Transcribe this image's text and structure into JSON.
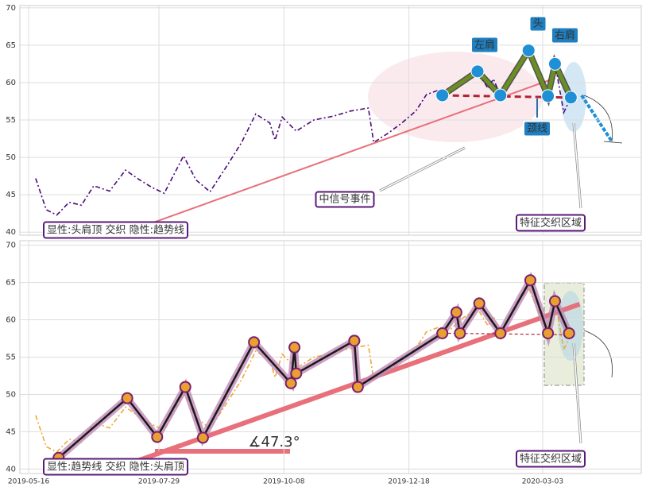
{
  "chart_data": [
    {
      "type": "line",
      "ylim": [
        39.6,
        70.3
      ],
      "yticks": [
        40,
        45,
        50,
        55,
        60,
        65,
        70
      ],
      "grid": true,
      "series": [
        {
          "name": "price",
          "color": "#4b0a7a",
          "dash": "6 3 2 3",
          "x": [
            "2019-05-20",
            "2019-05-26",
            "2019-06-01",
            "2019-06-08",
            "2019-06-15",
            "2019-06-22",
            "2019-07-01",
            "2019-07-10",
            "2019-07-18",
            "2019-07-25",
            "2019-08-01",
            "2019-08-12",
            "2019-08-19",
            "2019-08-27",
            "2019-09-06",
            "2019-09-14",
            "2019-09-22",
            "2019-09-30",
            "2019-10-03",
            "2019-10-07",
            "2019-10-15",
            "2019-10-25",
            "2019-11-05",
            "2019-11-15",
            "2019-11-25",
            "2019-11-28",
            "2019-12-06",
            "2019-12-14",
            "2019-12-22",
            "2019-12-28",
            "2020-01-04",
            "2020-01-10",
            "2020-01-18",
            "2020-01-26",
            "2020-02-01",
            "2020-02-04",
            "2020-02-08",
            "2020-02-17",
            "2020-02-24",
            "2020-03-06",
            "2020-03-10",
            "2020-03-15",
            "2020-03-19"
          ],
          "values": [
            47.2,
            43.0,
            42.3,
            44.0,
            43.6,
            46.2,
            45.5,
            48.3,
            47.0,
            46.0,
            45.2,
            50.2,
            47.0,
            45.4,
            49.0,
            52.0,
            55.8,
            54.6,
            52.3,
            55.4,
            53.5,
            55.0,
            55.5,
            56.2,
            56.6,
            52.0,
            53.2,
            54.6,
            56.2,
            58.4,
            59.0,
            58.6,
            60.3,
            61.5,
            59.2,
            60.5,
            58.3,
            62.0,
            64.3,
            58.1,
            62.6,
            56.0,
            58.0
          ]
        },
        {
          "name": "trend",
          "color": "#e8707a",
          "x": [
            "2019-07-20",
            "2020-03-10"
          ],
          "values": [
            40.8,
            60.6
          ]
        },
        {
          "name": "neckline",
          "color": "#b22234",
          "dash": "8 5",
          "x": [
            "2020-01-06",
            "2020-03-19"
          ],
          "values": [
            58.3,
            58.0
          ]
        },
        {
          "name": "pattern",
          "color": "#6b8e23",
          "marker_color": "#1f8fd6",
          "x": [
            "2020-01-06",
            "2020-01-26",
            "2020-02-08",
            "2020-02-24",
            "2020-03-06",
            "2020-03-10",
            "2020-03-19"
          ],
          "values": [
            58.3,
            61.5,
            58.3,
            64.3,
            58.2,
            62.5,
            58.0
          ]
        }
      ],
      "annotations": [
        "左肩",
        "头",
        "右肩",
        "颈线",
        "中信号事件",
        "特征交织区域",
        "显性:头肩顶 交织 隐性:趋势线"
      ]
    },
    {
      "type": "line",
      "ylim": [
        39.4,
        70.6
      ],
      "yticks": [
        40,
        45,
        50,
        55,
        60,
        65,
        70
      ],
      "grid": true,
      "xlim": [
        "2019-05-11",
        "2020-04-28"
      ],
      "xticks": [
        "2019-05-16",
        "2019-07-29",
        "2019-10-08",
        "2019-12-18",
        "2020-03-03"
      ],
      "series": [
        {
          "name": "price",
          "color": "#f0a838",
          "dash": "6 3 2 3",
          "x": [
            "2019-05-20",
            "2019-05-26",
            "2019-06-01",
            "2019-06-08",
            "2019-06-15",
            "2019-06-22",
            "2019-07-01",
            "2019-07-10",
            "2019-07-18",
            "2019-07-25",
            "2019-08-01",
            "2019-08-12",
            "2019-08-19",
            "2019-08-27",
            "2019-09-06",
            "2019-09-14",
            "2019-09-22",
            "2019-09-30",
            "2019-10-03",
            "2019-10-07",
            "2019-10-15",
            "2019-10-25",
            "2019-11-05",
            "2019-11-15",
            "2019-11-25",
            "2019-11-28",
            "2019-12-06",
            "2019-12-14",
            "2019-12-22",
            "2019-12-28",
            "2020-01-04",
            "2020-01-10",
            "2020-01-18",
            "2020-01-26",
            "2020-02-01",
            "2020-02-04",
            "2020-02-08",
            "2020-02-17",
            "2020-02-24",
            "2020-03-06",
            "2020-03-10",
            "2020-03-15",
            "2020-03-19"
          ],
          "values": [
            47.2,
            43.0,
            42.3,
            44.0,
            43.6,
            46.2,
            45.5,
            48.3,
            47.0,
            46.0,
            45.2,
            50.2,
            47.0,
            45.4,
            49.0,
            52.0,
            55.8,
            54.6,
            52.3,
            55.4,
            53.5,
            55.0,
            55.5,
            56.2,
            56.6,
            52.0,
            53.2,
            54.6,
            56.2,
            58.4,
            59.0,
            58.6,
            60.3,
            61.5,
            59.2,
            60.5,
            58.3,
            62.0,
            64.3,
            58.1,
            62.6,
            56.0,
            58.0
          ]
        },
        {
          "name": "trend",
          "color": "#e8707a",
          "x": [
            "2019-07-06",
            "2020-03-24"
          ],
          "values": [
            40.2,
            62.1
          ]
        },
        {
          "name": "neckline",
          "color": "#b22234",
          "dash": "4 3",
          "x": [
            "2020-01-06",
            "2020-03-19"
          ],
          "values": [
            58.2,
            58.0
          ]
        },
        {
          "name": "pattern",
          "color": "#1a1a1a",
          "marker_color": "#e8a030",
          "x": [
            "2019-06-02",
            "2019-07-11",
            "2019-07-28",
            "2019-08-13",
            "2019-08-23",
            "2019-09-21",
            "2019-10-12",
            "2019-10-14",
            "2019-10-15",
            "2019-11-17",
            "2019-11-19",
            "2020-01-06",
            "2020-01-14",
            "2020-01-16",
            "2020-01-27",
            "2020-02-08",
            "2020-02-25",
            "2020-03-06",
            "2020-03-10",
            "2020-03-18"
          ],
          "values": [
            41.5,
            49.5,
            44.3,
            51.0,
            44.2,
            57.0,
            51.5,
            56.3,
            52.8,
            57.2,
            51.0,
            58.2,
            61.0,
            58.2,
            62.2,
            58.2,
            65.3,
            58.2,
            62.5,
            58.2
          ]
        }
      ],
      "annotations": [
        "显性:趋势线 交织 隐性:头肩顶",
        "特征交织区域",
        "∡47.3°"
      ]
    }
  ]
}
